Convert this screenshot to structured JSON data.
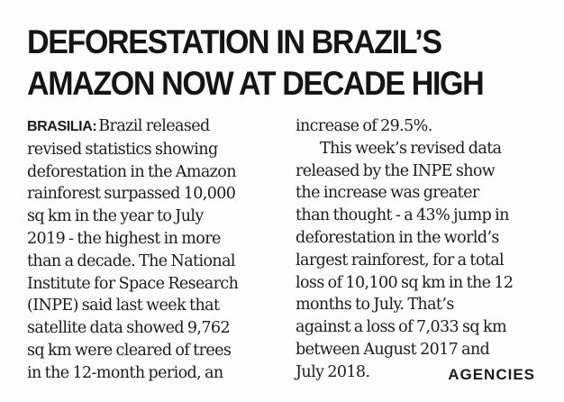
{
  "headline": {
    "line1": "DEFORESTATION IN BRAZIL’S",
    "line2": "AMAZON NOW AT DECADE HIGH"
  },
  "dateline": "BRASILIA:",
  "column_left": [
    "Brazil released",
    "revised statistics showing",
    "deforestation in the Amazon",
    "rainforest surpassed 10,000",
    "sq km in the year to July",
    "2019 - the highest in more",
    "than a decade.  The National",
    "Institute for Space Research",
    "(INPE) said last week that",
    "satellite data showed 9,762",
    "sq km were cleared of trees",
    "in the 12-month period, an"
  ],
  "column_right": [
    "increase of 29.5%.",
    "This week’s revised data",
    "released by the INPE show",
    "the increase was greater",
    "than thought - a 43% jump in",
    "deforestation in the world’s",
    "largest rainforest, for a total",
    "loss of 10,100 sq km in the 12",
    "months to July. That’s",
    "against a loss of 7,033 sq km",
    "between August 2017 and",
    "July 2018."
  ],
  "credit": "AGENCIES"
}
